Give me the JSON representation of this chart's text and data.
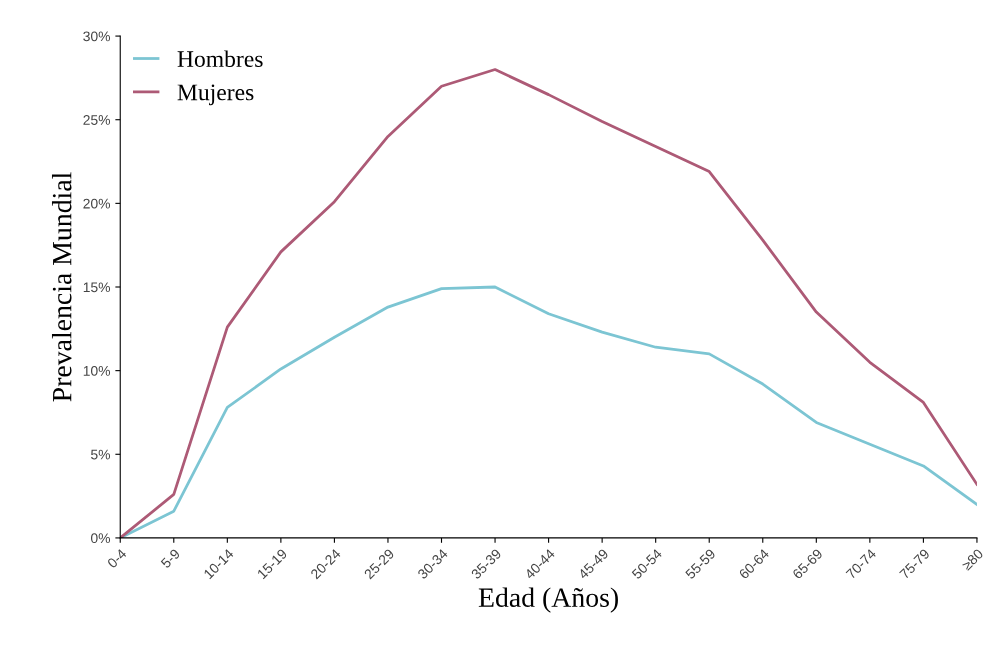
{
  "chart_data": {
    "type": "line",
    "xlabel": "Edad (Años)",
    "ylabel": "Prevalencia Mundial",
    "categories": [
      "0-4",
      "5-9",
      "10-14",
      "15-19",
      "20-24",
      "25-29",
      "30-34",
      "35-39",
      "40-44",
      "45-49",
      "50-54",
      "55-59",
      "60-64",
      "65-69",
      "70-74",
      "75-79",
      "≥80"
    ],
    "series": [
      {
        "name": "Hombres",
        "color": "#7cc5d3",
        "values": [
          0,
          1.6,
          7.8,
          10.1,
          12.0,
          13.8,
          14.9,
          15.0,
          13.4,
          12.3,
          11.4,
          11.0,
          9.2,
          6.9,
          5.6,
          4.3,
          2.0
        ]
      },
      {
        "name": "Mujeres",
        "color": "#ad5a76",
        "values": [
          0,
          2.6,
          12.6,
          17.1,
          20.1,
          24.0,
          27.0,
          28.0,
          26.5,
          24.9,
          23.4,
          21.9,
          17.8,
          13.5,
          10.5,
          8.1,
          3.2
        ]
      }
    ],
    "ylim": [
      0,
      30
    ],
    "yticks": [
      {
        "value": 0,
        "label": "0%"
      },
      {
        "value": 5,
        "label": "5%"
      },
      {
        "value": 10,
        "label": "10%"
      },
      {
        "value": 15,
        "label": "15%"
      },
      {
        "value": 20,
        "label": "20%"
      },
      {
        "value": 25,
        "label": "25%"
      },
      {
        "value": 30,
        "label": "30%"
      }
    ],
    "grid": false,
    "legend": "top left",
    "marker": "none",
    "line_style": "solid"
  }
}
